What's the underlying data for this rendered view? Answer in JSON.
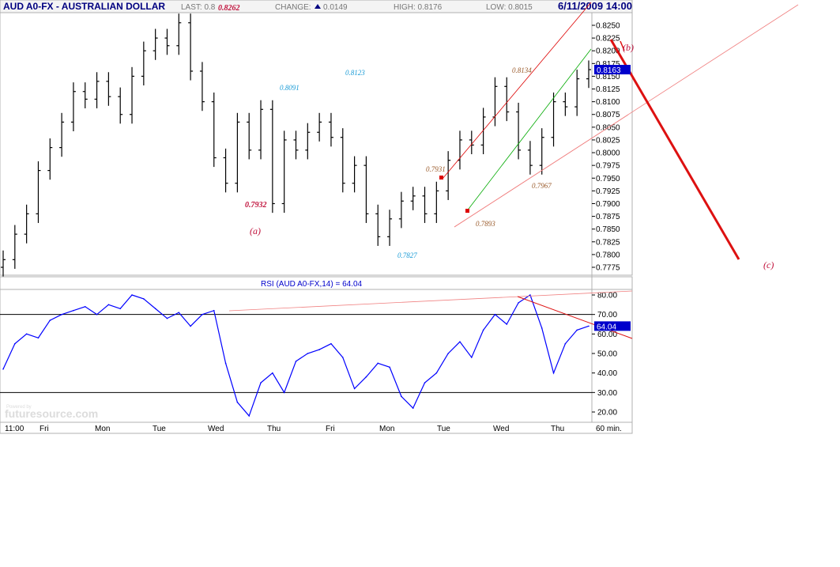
{
  "header": {
    "title": "AUD A0-FX - AUSTRALIAN DOLLAR",
    "last_label": "LAST: 0.8",
    "change_label": "CHANGE:",
    "change_value": "0.0149",
    "high_label": "HIGH: 0.8176",
    "low_label": "LOW: 0.8015",
    "datetime": "6/11/2009 14:00"
  },
  "rsi_title": "RSI (AUD A0-FX,14) = 64.04",
  "interval_label": "60 min.",
  "watermark": "futuresource.com",
  "watermark_small": "Powered by",
  "colors": {
    "price": "#000000",
    "rsi": "#0000ff",
    "channel_upper": "#dd0000",
    "channel_mid": "#00aa00",
    "trendline": "#f08080",
    "projection": "#dd1111",
    "last_box": "#0000cc"
  },
  "chart_data": [
    {
      "type": "candlestick",
      "title": "AUD A0-FX - AUSTRALIAN DOLLAR",
      "ylim": [
        0.775,
        0.8275
      ],
      "y_ticks": [
        "0.8250",
        "0.8225",
        "0.8200",
        "0.8175",
        "0.8150",
        "0.8125",
        "0.8100",
        "0.8075",
        "0.8050",
        "0.8025",
        "0.8000",
        "0.7975",
        "0.7950",
        "0.7925",
        "0.7900",
        "0.7875",
        "0.7850",
        "0.7825",
        "0.7800",
        "0.7775"
      ],
      "x_ticks": [
        "11:00",
        "Fri",
        "Mon",
        "Tue",
        "Wed",
        "Thu",
        "Fri",
        "Mon",
        "Tue",
        "Wed",
        "Thu"
      ],
      "last_value": "0.8163",
      "x": [
        0,
        2,
        4,
        6,
        8,
        10,
        12,
        14,
        16,
        18,
        20,
        22,
        24,
        26,
        28,
        30,
        32,
        34,
        36,
        38,
        40,
        42,
        44,
        46,
        48,
        50,
        52,
        54,
        56,
        58,
        60,
        62,
        64,
        66,
        68,
        70,
        72,
        74,
        76,
        78,
        80,
        82,
        84,
        86,
        88,
        90,
        92,
        94,
        96,
        98,
        100
      ],
      "close": [
        0.779,
        0.784,
        0.788,
        0.7965,
        0.801,
        0.806,
        0.812,
        0.8105,
        0.814,
        0.811,
        0.8075,
        0.815,
        0.82,
        0.8225,
        0.821,
        0.8255,
        0.816,
        0.81,
        0.799,
        0.794,
        0.806,
        0.8005,
        0.8085,
        0.79,
        0.8025,
        0.8005,
        0.804,
        0.806,
        0.803,
        0.794,
        0.7975,
        0.788,
        0.7835,
        0.787,
        0.7905,
        0.7915,
        0.788,
        0.7925,
        0.7985,
        0.8025,
        0.8015,
        0.807,
        0.813,
        0.808,
        0.8005,
        0.7975,
        0.803,
        0.81,
        0.809,
        0.8145,
        0.8163
      ],
      "annotations": [
        {
          "label": "0.8262",
          "x": 36,
          "y": 0.8262,
          "style": "red"
        },
        {
          "label": "0.7932",
          "x": 41,
          "y": 0.7932,
          "style": "red"
        },
        {
          "label": "0.8091",
          "x": 46,
          "y": 0.8091,
          "style": "blue"
        },
        {
          "label": "0.8123",
          "x": 56,
          "y": 0.8123,
          "style": "blue"
        },
        {
          "label": "0.7827",
          "x": 66,
          "y": 0.7827,
          "style": "blue"
        },
        {
          "label": "0.7931",
          "x": 70,
          "y": 0.7931,
          "style": "brown"
        },
        {
          "label": "0.7893",
          "x": 76,
          "y": 0.7893,
          "style": "brown"
        },
        {
          "label": "0.8134",
          "x": 84,
          "y": 0.8134,
          "style": "brown"
        },
        {
          "label": "0.7967",
          "x": 88,
          "y": 0.7967,
          "style": "brown"
        }
      ],
      "wave_labels": [
        "(a)",
        "(b)",
        "(c)"
      ]
    },
    {
      "type": "line",
      "title": "RSI (AUD A0-FX,14) = 64.04",
      "ylim": [
        17,
        82
      ],
      "y_ticks": [
        "80.00",
        "70.00",
        "60.00",
        "50.00",
        "40.00",
        "30.00",
        "20.00"
      ],
      "reference_lines": [
        70,
        30
      ],
      "last_value": "64.04",
      "x": [
        0,
        2,
        4,
        6,
        8,
        10,
        12,
        14,
        16,
        18,
        20,
        22,
        24,
        26,
        28,
        30,
        32,
        34,
        36,
        38,
        40,
        42,
        44,
        46,
        48,
        50,
        52,
        54,
        56,
        58,
        60,
        62,
        64,
        66,
        68,
        70,
        72,
        74,
        76,
        78,
        80,
        82,
        84,
        86,
        88,
        90,
        92,
        94,
        96,
        98,
        100
      ],
      "values": [
        42,
        55,
        60,
        58,
        67,
        70,
        72,
        74,
        70,
        75,
        73,
        80,
        78,
        73,
        68,
        71,
        64,
        70,
        72,
        45,
        25,
        18,
        35,
        40,
        30,
        46,
        50,
        52,
        55,
        48,
        32,
        38,
        45,
        43,
        28,
        22,
        35,
        40,
        50,
        56,
        48,
        62,
        70,
        65,
        76,
        80,
        63,
        40,
        55,
        62,
        64.04
      ]
    }
  ]
}
